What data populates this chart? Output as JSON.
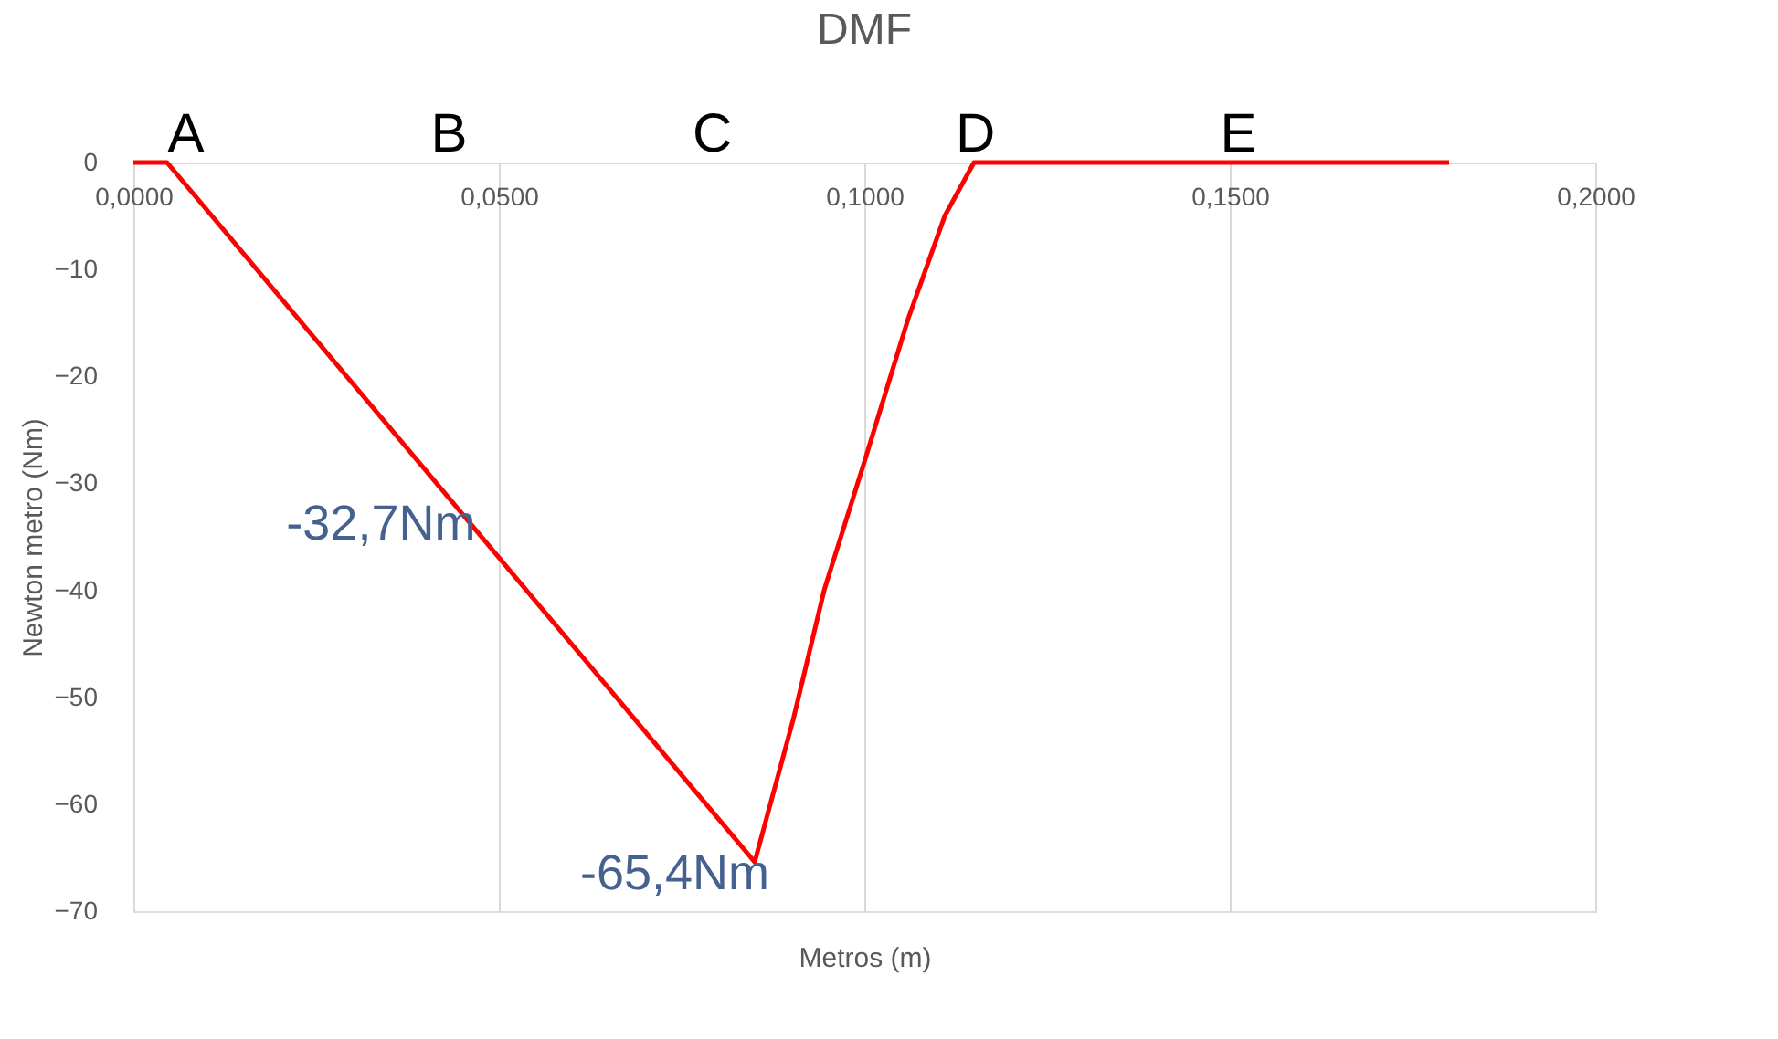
{
  "chart_data": {
    "type": "line",
    "title": "DMF",
    "xlabel": "Metros (m)",
    "ylabel": "Newton metro (Nm)",
    "x": [
      0,
      0.0046,
      0.085,
      0.0903,
      0.0945,
      0.1,
      0.106,
      0.111,
      0.115,
      0.18
    ],
    "series": [
      {
        "color": "#ff0000",
        "values": [
          0,
          0,
          -65.4,
          -52,
          -40,
          -28,
          -14.6,
          -5,
          0,
          0
        ]
      }
    ],
    "xlim": [
      0,
      0.2
    ],
    "xticks": [
      {
        "value": 0,
        "label": "0,0000"
      },
      {
        "value": 0.05,
        "label": "0,0500"
      },
      {
        "value": 0.1,
        "label": "0,1000"
      },
      {
        "value": 0.15,
        "label": "0,1500"
      },
      {
        "value": 0.2,
        "label": "0,2000"
      }
    ],
    "ylim": [
      -70,
      0
    ],
    "yticks": [
      -70,
      -60,
      -50,
      -40,
      -30,
      -20,
      -10,
      0
    ],
    "grid": "x",
    "marker": "none",
    "line_style": "solid",
    "annotations": [
      "A",
      "B",
      "C",
      "D",
      "E",
      {
        "text": "-32,7Nm",
        "x": 0.0448,
        "y": -32.7
      },
      {
        "text": "-65,4Nm",
        "x": 0.085,
        "y": -65.4
      }
    ]
  }
}
